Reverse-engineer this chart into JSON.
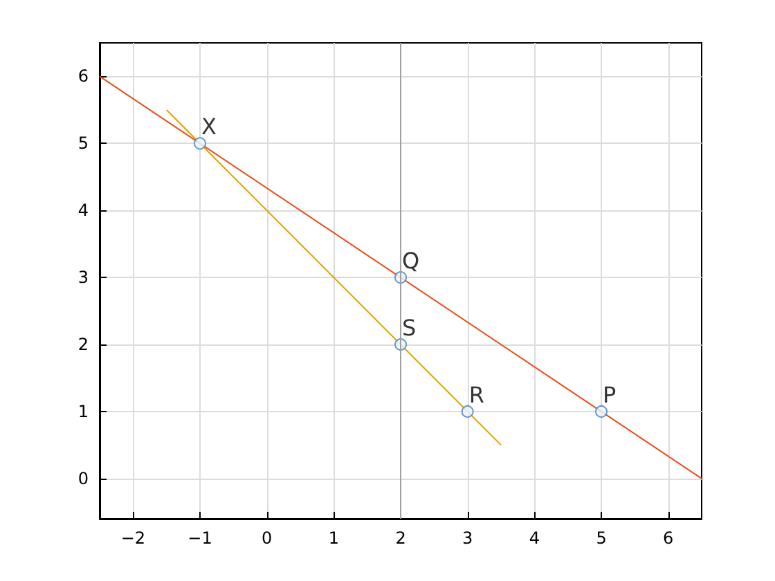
{
  "chart_data": {
    "type": "line",
    "xlim": [
      -2.5,
      6.5
    ],
    "xticks": [
      -2,
      -1,
      0,
      1,
      2,
      3,
      4,
      5,
      6
    ],
    "ylim": [
      -0.6,
      6.5
    ],
    "yticks": [
      0,
      1,
      2,
      3,
      4,
      5,
      6
    ],
    "grid": true,
    "series": [
      {
        "type": "line",
        "color": "#e8501c",
        "x": [
          -2.5,
          6.5
        ],
        "values": [
          6,
          0
        ],
        "marker": "none"
      },
      {
        "type": "line",
        "color": "#e0a000",
        "x": [
          -1.5,
          3.5
        ],
        "values": [
          5.5,
          0.5
        ],
        "marker": "none"
      },
      {
        "type": "scatter",
        "color": "#4a7fc0",
        "x": [
          -1,
          2,
          2,
          3,
          5
        ],
        "values": [
          5,
          3,
          2,
          1,
          1
        ],
        "marker": "circle"
      }
    ],
    "ref_lines": [
      {
        "axis": "x",
        "value": 2,
        "color": "#a0a0a0"
      }
    ],
    "annotations": [
      {
        "text": "X",
        "x": -1,
        "y": 5
      },
      {
        "text": "Q",
        "x": 2,
        "y": 3
      },
      {
        "text": "S",
        "x": 2,
        "y": 2
      },
      {
        "text": "R",
        "x": 3,
        "y": 1
      },
      {
        "text": "P",
        "x": 5,
        "y": 1
      }
    ]
  }
}
